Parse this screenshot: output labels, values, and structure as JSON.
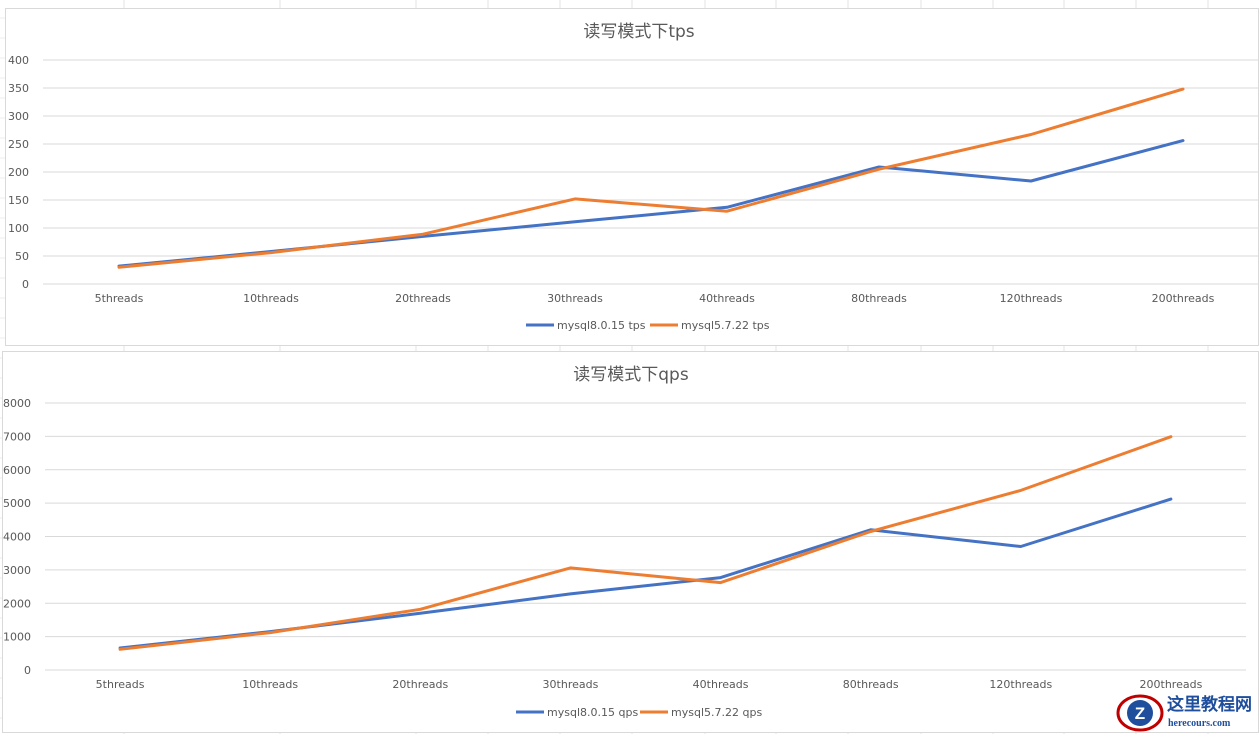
{
  "colors": {
    "mysql8": "#4472c4",
    "mysql57": "#ed7d31",
    "grid": "#d9d9d9",
    "text": "#595959"
  },
  "chart_data": [
    {
      "type": "line",
      "title": "读写模式下tps",
      "categories": [
        "5threads",
        "10threads",
        "20threads",
        "30threads",
        "40threads",
        "80threads",
        "120threads",
        "200threads"
      ],
      "ylim": [
        0,
        400
      ],
      "yticks": [
        0,
        50,
        100,
        150,
        200,
        250,
        300,
        350,
        400
      ],
      "grid": true,
      "legend_position": "bottom",
      "series": [
        {
          "name": "mysql8.0.15 tps",
          "values": [
            32,
            58,
            85,
            111,
            137,
            209,
            184,
            256
          ]
        },
        {
          "name": "mysql5.7.22 tps",
          "values": [
            30,
            56,
            89,
            152,
            130,
            205,
            267,
            348
          ]
        }
      ]
    },
    {
      "type": "line",
      "title": "读写模式下qps",
      "categories": [
        "5threads",
        "10threads",
        "20threads",
        "30threads",
        "40threads",
        "80threads",
        "120threads",
        "200threads"
      ],
      "ylim": [
        0,
        8000
      ],
      "yticks": [
        0,
        1000,
        2000,
        3000,
        4000,
        5000,
        6000,
        7000,
        8000
      ],
      "grid": true,
      "legend_position": "bottom",
      "series": [
        {
          "name": "mysql8.0.15 qps",
          "values": [
            660,
            1150,
            1700,
            2280,
            2770,
            4200,
            3700,
            5120
          ]
        },
        {
          "name": "mysql5.7.22 qps",
          "values": [
            620,
            1120,
            1820,
            3060,
            2620,
            4150,
            5380,
            6990
          ]
        }
      ]
    }
  ],
  "watermark": {
    "cn": "这里教程网",
    "en": "herecours.com",
    "logo_letter": "Z"
  }
}
